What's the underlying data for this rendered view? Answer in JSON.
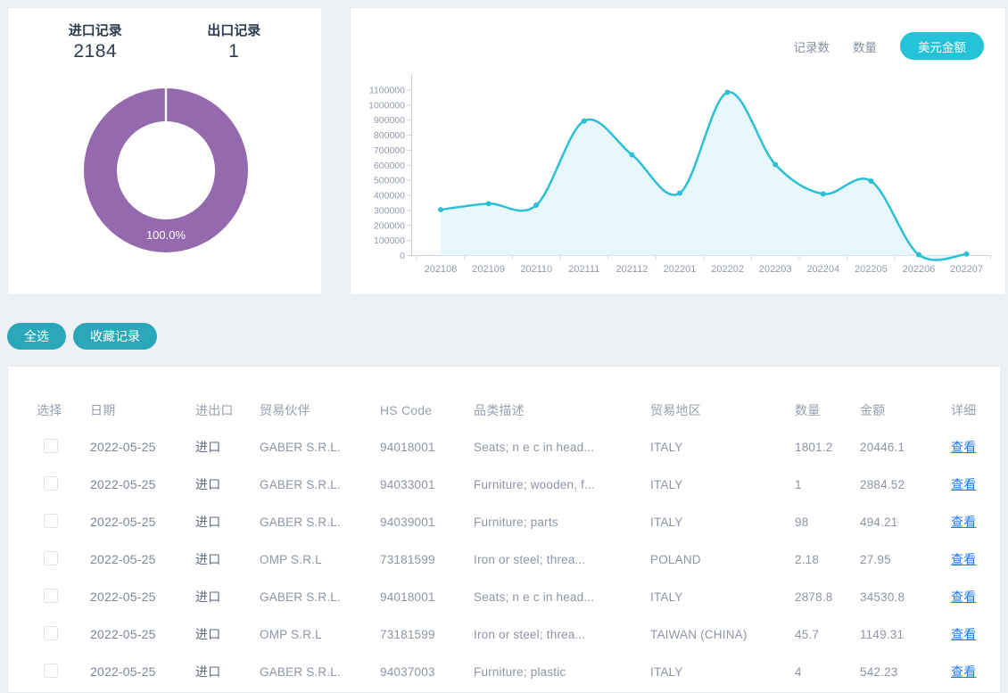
{
  "colors": {
    "page_bg": "#edf1f5",
    "accent_cyan": "#24c3d7",
    "button_teal": "#2aa7b9",
    "donut_purple": "#9569ae",
    "link_blue": "#1f7cf0",
    "line_color": "#2bc0d4",
    "area_fill": "#e4f6fa",
    "axis_color": "#ccd3dd",
    "tick_text": "#929bab",
    "heading_text": "#2e3a4e",
    "cell_text": "#8d96a4",
    "type_text": "#5f6c7b",
    "header_text": "#98a1ae"
  },
  "summary": {
    "import_label": "进口记录",
    "import_value": "2184",
    "export_label": "出口记录",
    "export_value": "1"
  },
  "chart_card": {
    "toggles": [
      {
        "label": "记录数",
        "active": false
      },
      {
        "label": "数量",
        "active": false
      },
      {
        "label": "美元金额",
        "active": true
      }
    ]
  },
  "chart_data": [
    {
      "type": "pie",
      "labels": [
        "进口记录",
        "出口记录"
      ],
      "values": [
        2184,
        1
      ],
      "percent_label": "100.0%",
      "color": "#9569ae",
      "style": "donut"
    },
    {
      "type": "area",
      "x": [
        "202108",
        "202109",
        "202110",
        "202111",
        "202112",
        "202201",
        "202202",
        "202203",
        "202204",
        "202205",
        "202206",
        "202207"
      ],
      "series": [
        {
          "name": "美元金额",
          "values": [
            305000,
            345000,
            335000,
            895000,
            670000,
            415000,
            1085000,
            605000,
            410000,
            495000,
            5000,
            10000
          ]
        }
      ],
      "ylim": [
        0,
        1100000
      ],
      "ytick_step": 100000,
      "grid": false,
      "legend": "none",
      "line_color": "#2bc0d4",
      "fill_color": "#e4f6fa"
    }
  ],
  "actions": {
    "select_all": "全选",
    "favorite": "收藏记录"
  },
  "table": {
    "columns": [
      "选择",
      "日期",
      "进出口",
      "贸易伙伴",
      "HS Code",
      "品类描述",
      "贸易地区",
      "数量",
      "金额",
      "详细"
    ],
    "view_label": "查看",
    "rows": [
      {
        "date": "2022-05-25",
        "type": "进口",
        "partner": "GABER S.R.L.",
        "hs_code": "94018001",
        "desc": "Seats; n e c in head...",
        "region": "ITALY",
        "qty": "1801.2",
        "amount": "20446.1"
      },
      {
        "date": "2022-05-25",
        "type": "进口",
        "partner": "GABER S.R.L.",
        "hs_code": "94033001",
        "desc": "Furniture; wooden, f...",
        "region": "ITALY",
        "qty": "1",
        "amount": "2884.52"
      },
      {
        "date": "2022-05-25",
        "type": "进口",
        "partner": "GABER S.R.L.",
        "hs_code": "94039001",
        "desc": "Furniture; parts",
        "region": "ITALY",
        "qty": "98",
        "amount": "494.21"
      },
      {
        "date": "2022-05-25",
        "type": "进口",
        "partner": "OMP S.R.L",
        "hs_code": "73181599",
        "desc": "Iron or steel; threa...",
        "region": "POLAND",
        "qty": "2.18",
        "amount": "27.95"
      },
      {
        "date": "2022-05-25",
        "type": "进口",
        "partner": "GABER S.R.L.",
        "hs_code": "94018001",
        "desc": "Seats; n e c in head...",
        "region": "ITALY",
        "qty": "2878.8",
        "amount": "34530.8"
      },
      {
        "date": "2022-05-25",
        "type": "进口",
        "partner": "OMP S.R.L",
        "hs_code": "73181599",
        "desc": "Iron or steel; threa...",
        "region": "TAIWAN (CHINA)",
        "qty": "45.7",
        "amount": "1149.31"
      },
      {
        "date": "2022-05-25",
        "type": "进口",
        "partner": "GABER S.R.L.",
        "hs_code": "94037003",
        "desc": "Furniture; plastic",
        "region": "ITALY",
        "qty": "4",
        "amount": "542.23"
      }
    ]
  }
}
